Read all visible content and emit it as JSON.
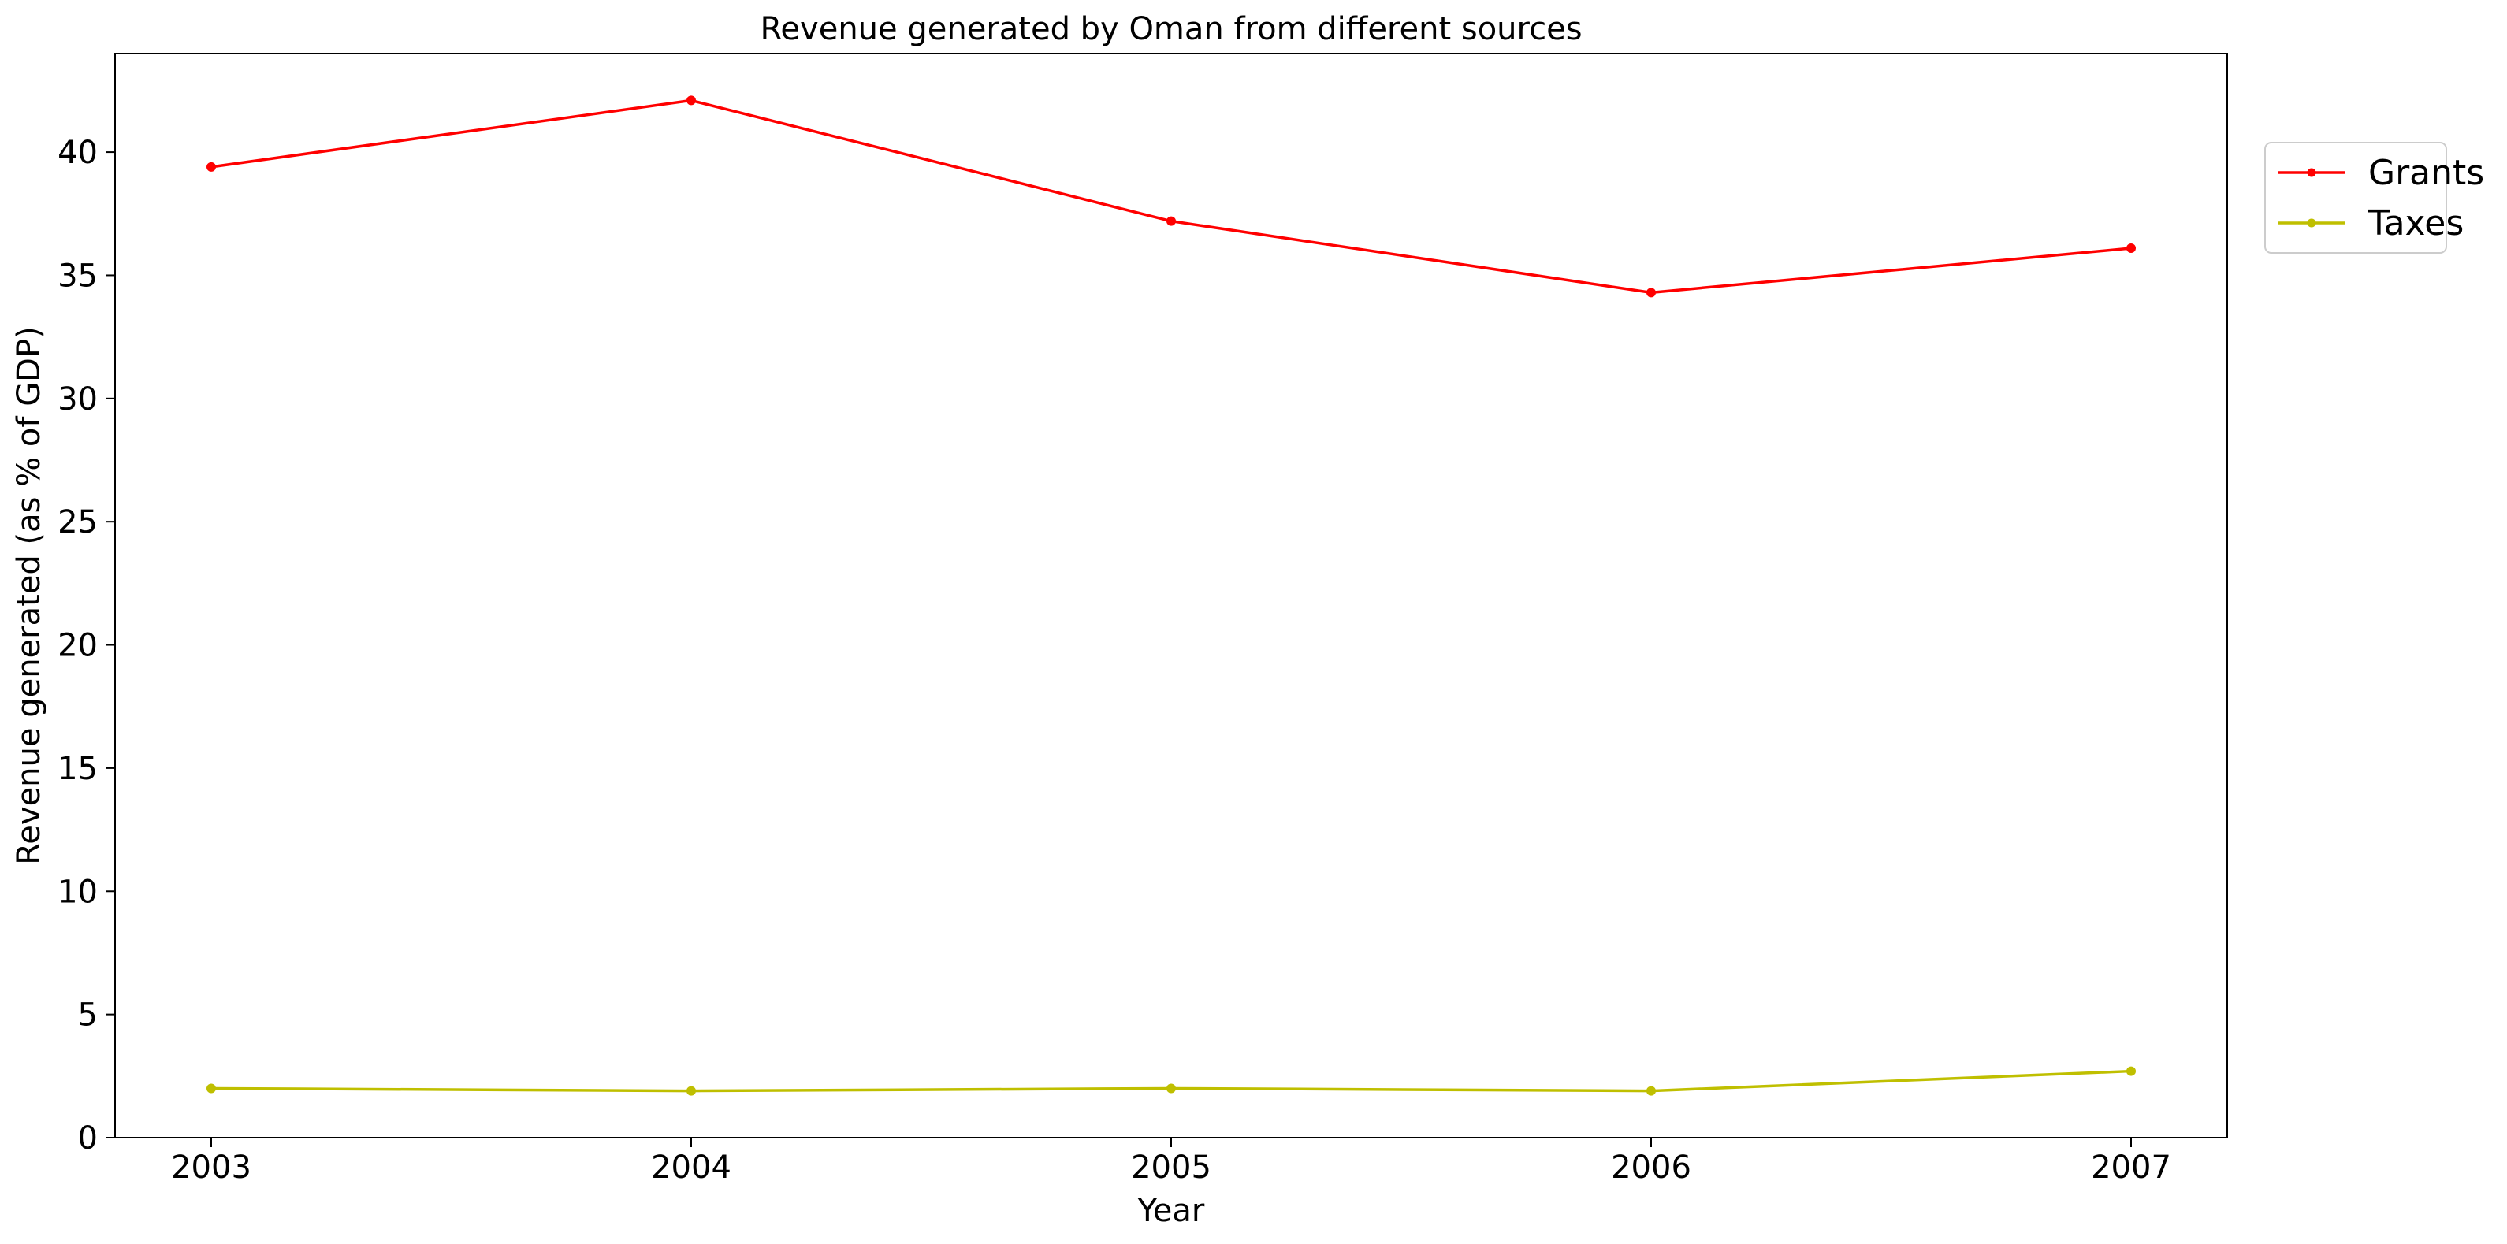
{
  "chart_data": {
    "type": "line",
    "title": "Revenue generated by Oman from different sources",
    "xlabel": "Year",
    "ylabel": "Revenue generated (as % of GDP)",
    "x": [
      "2003",
      "2004",
      "2005",
      "2006",
      "2007"
    ],
    "ylim": [
      0,
      44
    ],
    "yticks": [
      0,
      5,
      10,
      15,
      20,
      25,
      30,
      35,
      40
    ],
    "grid": false,
    "legend_position": "upper right, outside plot",
    "series": [
      {
        "name": "Grants",
        "color": "#ff0000",
        "marker": "circle",
        "values": [
          39.4,
          42.1,
          37.2,
          34.3,
          36.1
        ]
      },
      {
        "name": "Taxes",
        "color": "#bfbf00",
        "marker": "circle",
        "values": [
          2.0,
          1.9,
          2.0,
          1.9,
          2.7
        ]
      }
    ]
  }
}
